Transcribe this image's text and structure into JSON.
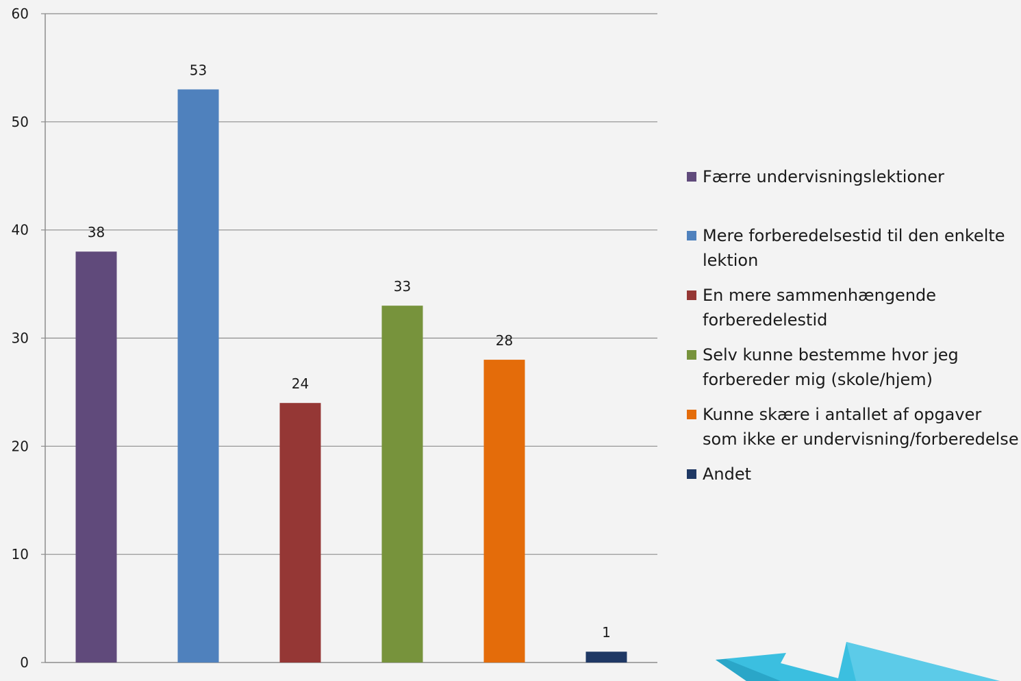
{
  "chart_data": {
    "type": "bar",
    "categories": [
      "Færre undervisningslektioner",
      "Mere forberedelsestid til den enkelte lektion",
      "En mere sammenhængende forberedelestid",
      "Selv kunne bestemme hvor jeg forbereder mig (skole/hjem)",
      "Kunne skære i antallet af opgaver som ikke er undervisning/forberedelse",
      "Andet"
    ],
    "values": [
      38,
      53,
      24,
      33,
      28,
      1
    ],
    "colors": [
      "#604a7b",
      "#4f81bd",
      "#953735",
      "#77933c",
      "#e46c0a",
      "#1f3864"
    ],
    "ylim": [
      0,
      60
    ],
    "yticks": [
      0,
      10,
      20,
      30,
      40,
      50,
      60
    ],
    "grid": true,
    "legend_position": "right",
    "title": "",
    "xlabel": "",
    "ylabel": ""
  },
  "decoration": {
    "arrow_icon": "double-arrow-icon",
    "arrow_color": "#3bbfe0"
  }
}
